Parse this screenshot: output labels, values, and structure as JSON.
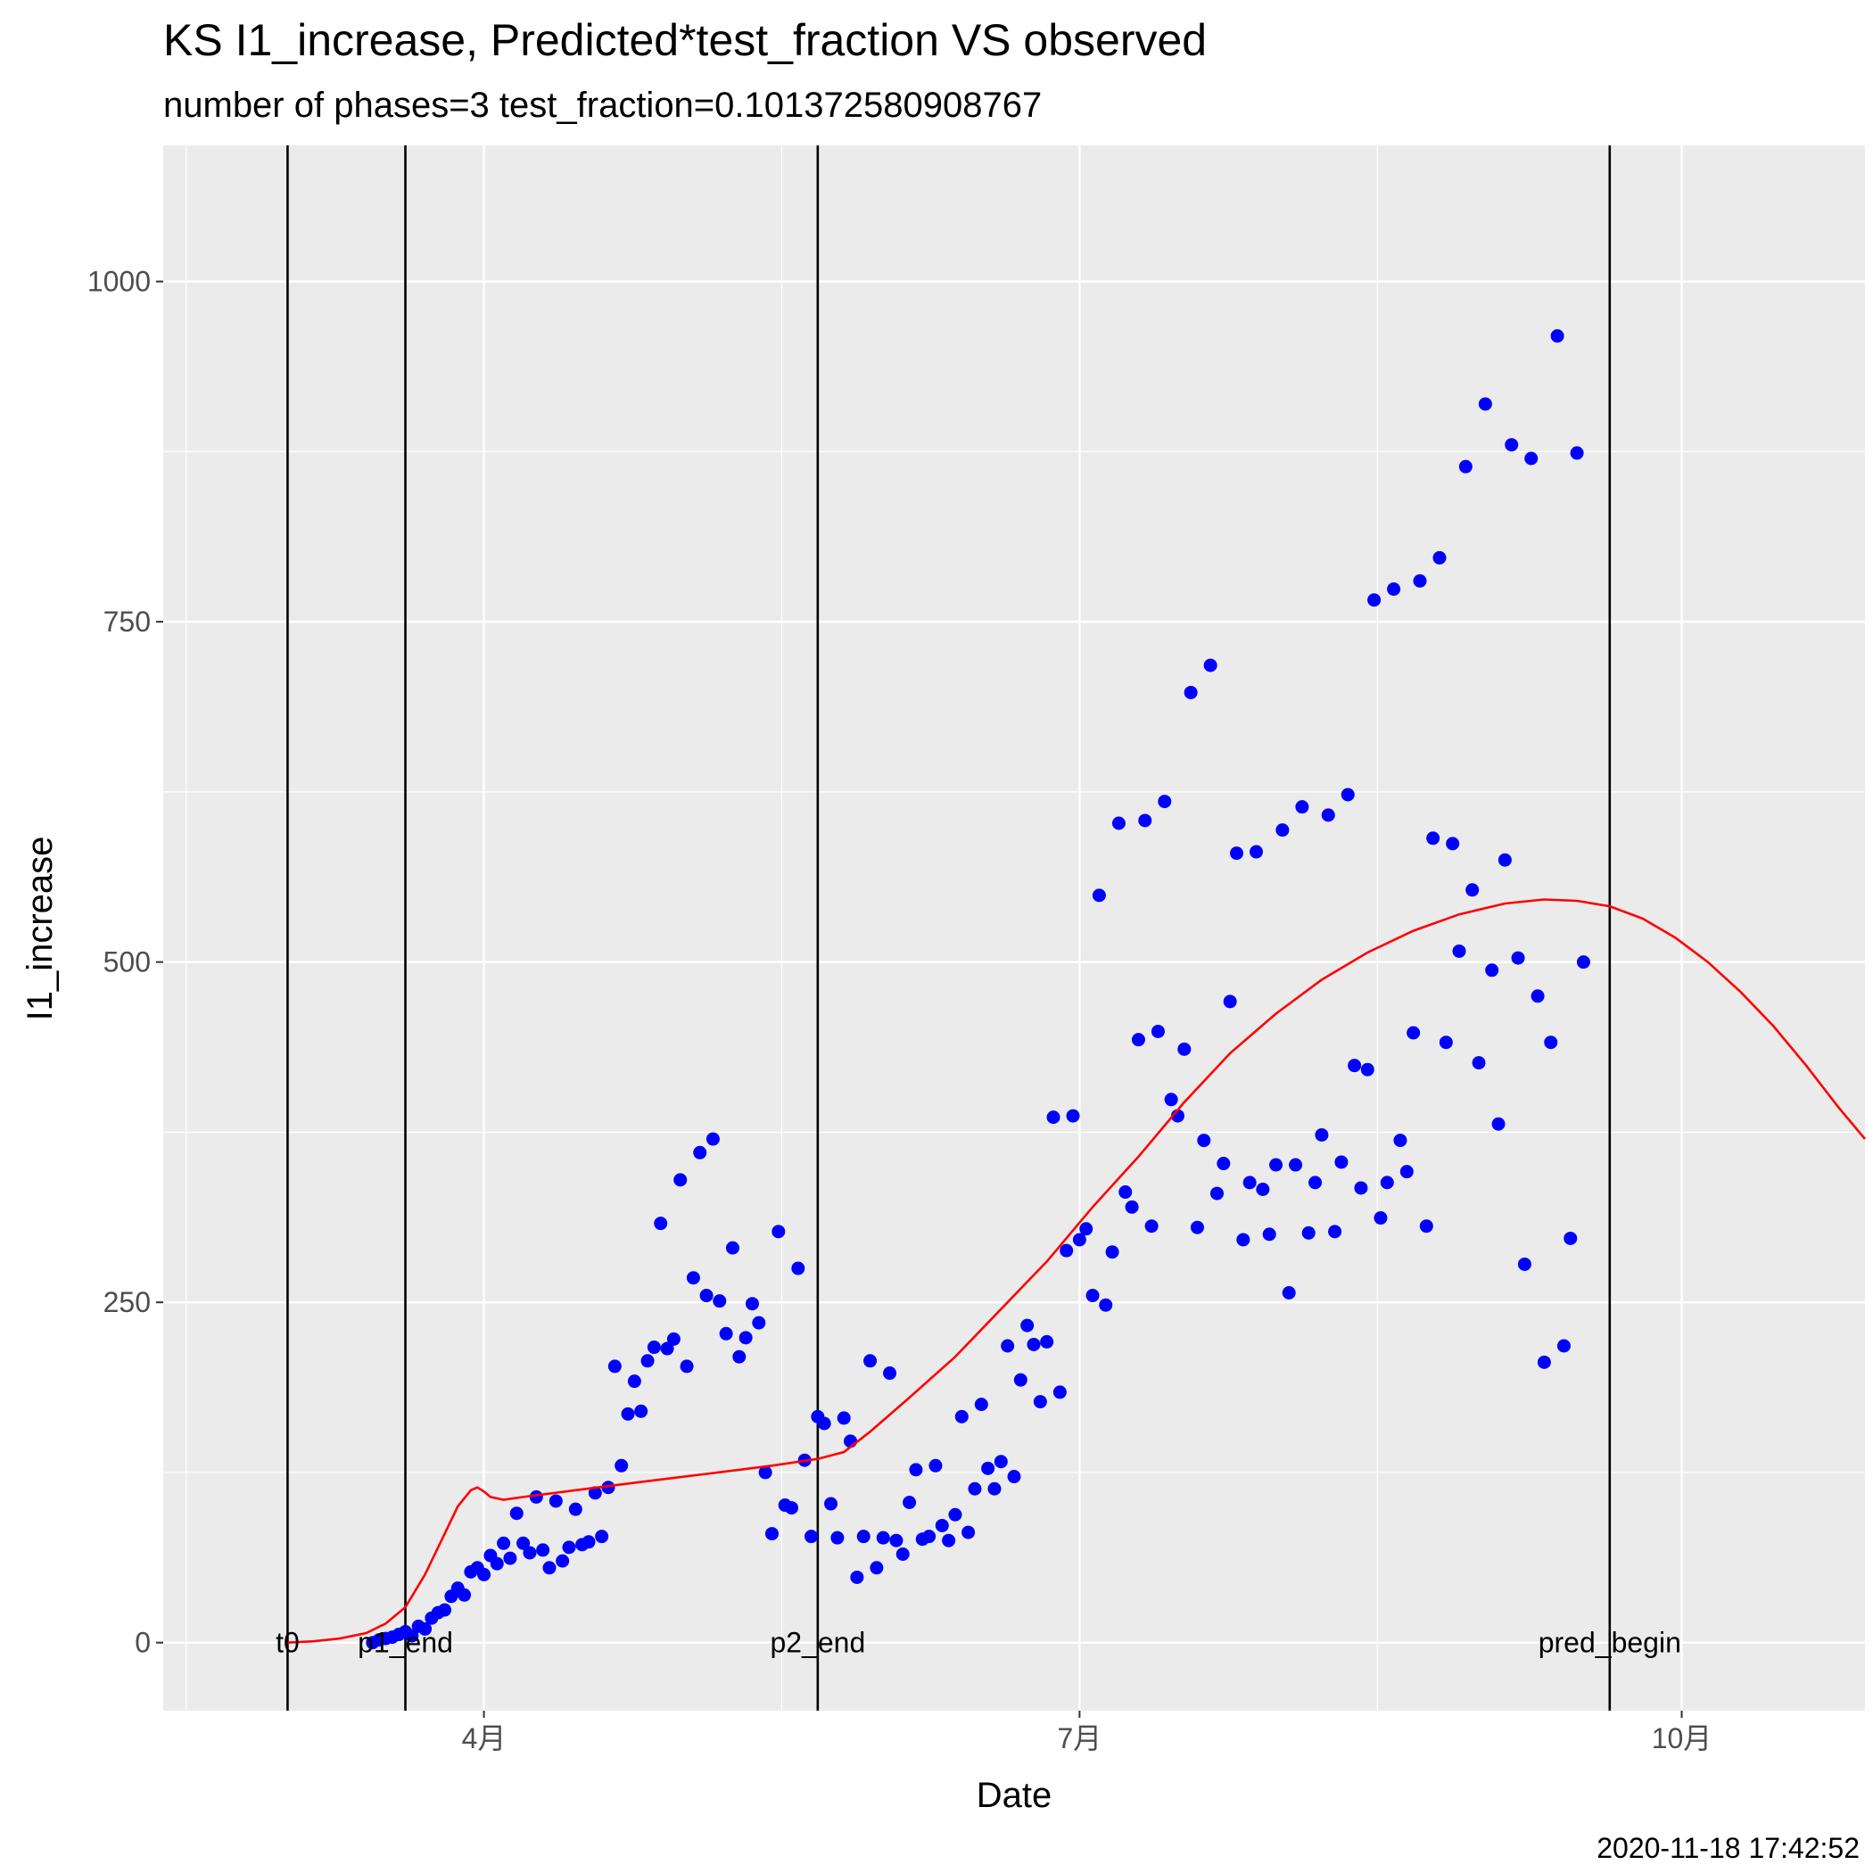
{
  "chart_data": {
    "type": "scatter",
    "title": "KS I1_increase, Predicted*test_fraction VS observed",
    "subtitle": "number of phases=3   test_fraction=0.101372580908767",
    "xlabel": "Date",
    "ylabel": "I1_increase",
    "caption": "2020-11-18 17:42:52",
    "x_ticks": [
      {
        "date": "2020-04-01",
        "label": "4月"
      },
      {
        "date": "2020-07-01",
        "label": "7月"
      },
      {
        "date": "2020-10-01",
        "label": "10月"
      }
    ],
    "xlim": [
      "2020-02-12",
      "2020-10-29"
    ],
    "y_ticks": [
      0,
      250,
      500,
      750,
      1000
    ],
    "ylim": [
      -50,
      1100
    ],
    "grid": true,
    "colors": {
      "panel": "#ebebeb",
      "grid": "#ffffff",
      "observed": "#0000ff",
      "predicted": "#ff0000",
      "vline": "#000000"
    },
    "vlines": [
      {
        "date": "2020-03-02",
        "label": "t0"
      },
      {
        "date": "2020-03-20",
        "label": "p1_end"
      },
      {
        "date": "2020-05-22",
        "label": "p2_end"
      },
      {
        "date": "2020-09-20",
        "label": "pred_begin"
      }
    ],
    "series": [
      {
        "name": "observed",
        "kind": "points",
        "points": [
          [
            "2020-03-15",
            0
          ],
          [
            "2020-03-16",
            2
          ],
          [
            "2020-03-17",
            3
          ],
          [
            "2020-03-18",
            4
          ],
          [
            "2020-03-19",
            6
          ],
          [
            "2020-03-20",
            8
          ],
          [
            "2020-03-21",
            5
          ],
          [
            "2020-03-22",
            12
          ],
          [
            "2020-03-23",
            10
          ],
          [
            "2020-03-24",
            18
          ],
          [
            "2020-03-25",
            22
          ],
          [
            "2020-03-26",
            24
          ],
          [
            "2020-03-27",
            34
          ],
          [
            "2020-03-28",
            40
          ],
          [
            "2020-03-29",
            35
          ],
          [
            "2020-03-30",
            52
          ],
          [
            "2020-03-31",
            55
          ],
          [
            "2020-04-01",
            50
          ],
          [
            "2020-04-02",
            64
          ],
          [
            "2020-04-03",
            58
          ],
          [
            "2020-04-04",
            73
          ],
          [
            "2020-04-05",
            62
          ],
          [
            "2020-04-06",
            95
          ],
          [
            "2020-04-07",
            73
          ],
          [
            "2020-04-08",
            66
          ],
          [
            "2020-04-09",
            107
          ],
          [
            "2020-04-10",
            68
          ],
          [
            "2020-04-11",
            55
          ],
          [
            "2020-04-12",
            104
          ],
          [
            "2020-04-13",
            60
          ],
          [
            "2020-04-14",
            70
          ],
          [
            "2020-04-15",
            98
          ],
          [
            "2020-04-16",
            72
          ],
          [
            "2020-04-17",
            74
          ],
          [
            "2020-04-18",
            110
          ],
          [
            "2020-04-19",
            78
          ],
          [
            "2020-04-20",
            114
          ],
          [
            "2020-04-21",
            203
          ],
          [
            "2020-04-22",
            130
          ],
          [
            "2020-04-23",
            168
          ],
          [
            "2020-04-24",
            192
          ],
          [
            "2020-04-25",
            170
          ],
          [
            "2020-04-26",
            207
          ],
          [
            "2020-04-27",
            217
          ],
          [
            "2020-04-28",
            308
          ],
          [
            "2020-04-29",
            216
          ],
          [
            "2020-04-30",
            223
          ],
          [
            "2020-05-01",
            340
          ],
          [
            "2020-05-02",
            203
          ],
          [
            "2020-05-03",
            268
          ],
          [
            "2020-05-04",
            360
          ],
          [
            "2020-05-05",
            255
          ],
          [
            "2020-05-06",
            370
          ],
          [
            "2020-05-07",
            251
          ],
          [
            "2020-05-08",
            227
          ],
          [
            "2020-05-09",
            290
          ],
          [
            "2020-05-10",
            210
          ],
          [
            "2020-05-11",
            224
          ],
          [
            "2020-05-12",
            249
          ],
          [
            "2020-05-13",
            235
          ],
          [
            "2020-05-14",
            125
          ],
          [
            "2020-05-15",
            80
          ],
          [
            "2020-05-16",
            302
          ],
          [
            "2020-05-17",
            101
          ],
          [
            "2020-05-18",
            99
          ],
          [
            "2020-05-19",
            275
          ],
          [
            "2020-05-20",
            134
          ],
          [
            "2020-05-21",
            78
          ],
          [
            "2020-05-22",
            166
          ],
          [
            "2020-05-23",
            161
          ],
          [
            "2020-05-24",
            102
          ],
          [
            "2020-05-25",
            77
          ],
          [
            "2020-05-26",
            165
          ],
          [
            "2020-05-27",
            148
          ],
          [
            "2020-05-28",
            48
          ],
          [
            "2020-05-29",
            78
          ],
          [
            "2020-05-30",
            207
          ],
          [
            "2020-05-31",
            55
          ],
          [
            "2020-06-01",
            77
          ],
          [
            "2020-06-02",
            198
          ],
          [
            "2020-06-03",
            75
          ],
          [
            "2020-06-04",
            65
          ],
          [
            "2020-06-05",
            103
          ],
          [
            "2020-06-06",
            127
          ],
          [
            "2020-06-07",
            76
          ],
          [
            "2020-06-08",
            78
          ],
          [
            "2020-06-09",
            130
          ],
          [
            "2020-06-10",
            86
          ],
          [
            "2020-06-11",
            75
          ],
          [
            "2020-06-12",
            94
          ],
          [
            "2020-06-13",
            166
          ],
          [
            "2020-06-14",
            81
          ],
          [
            "2020-06-15",
            113
          ],
          [
            "2020-06-16",
            175
          ],
          [
            "2020-06-17",
            128
          ],
          [
            "2020-06-18",
            113
          ],
          [
            "2020-06-19",
            133
          ],
          [
            "2020-06-20",
            218
          ],
          [
            "2020-06-21",
            122
          ],
          [
            "2020-06-22",
            193
          ],
          [
            "2020-06-23",
            233
          ],
          [
            "2020-06-24",
            219
          ],
          [
            "2020-06-25",
            177
          ],
          [
            "2020-06-26",
            221
          ],
          [
            "2020-06-27",
            386
          ],
          [
            "2020-06-28",
            184
          ],
          [
            "2020-06-29",
            288
          ],
          [
            "2020-06-30",
            387
          ],
          [
            "2020-07-01",
            296
          ],
          [
            "2020-07-02",
            304
          ],
          [
            "2020-07-03",
            255
          ],
          [
            "2020-07-04",
            549
          ],
          [
            "2020-07-05",
            248
          ],
          [
            "2020-07-06",
            287
          ],
          [
            "2020-07-07",
            602
          ],
          [
            "2020-07-08",
            331
          ],
          [
            "2020-07-09",
            320
          ],
          [
            "2020-07-10",
            443
          ],
          [
            "2020-07-11",
            604
          ],
          [
            "2020-07-12",
            306
          ],
          [
            "2020-07-13",
            449
          ],
          [
            "2020-07-14",
            618
          ],
          [
            "2020-07-15",
            399
          ],
          [
            "2020-07-16",
            387
          ],
          [
            "2020-07-17",
            436
          ],
          [
            "2020-07-18",
            698
          ],
          [
            "2020-07-19",
            305
          ],
          [
            "2020-07-20",
            369
          ],
          [
            "2020-07-21",
            718
          ],
          [
            "2020-07-22",
            330
          ],
          [
            "2020-07-23",
            352
          ],
          [
            "2020-07-24",
            471
          ],
          [
            "2020-07-25",
            580
          ],
          [
            "2020-07-26",
            296
          ],
          [
            "2020-07-27",
            338
          ],
          [
            "2020-07-28",
            581
          ],
          [
            "2020-07-29",
            333
          ],
          [
            "2020-07-30",
            300
          ],
          [
            "2020-07-31",
            351
          ],
          [
            "2020-08-01",
            597
          ],
          [
            "2020-08-02",
            257
          ],
          [
            "2020-08-03",
            351
          ],
          [
            "2020-08-04",
            614
          ],
          [
            "2020-08-05",
            301
          ],
          [
            "2020-08-06",
            338
          ],
          [
            "2020-08-07",
            373
          ],
          [
            "2020-08-08",
            608
          ],
          [
            "2020-08-09",
            302
          ],
          [
            "2020-08-10",
            353
          ],
          [
            "2020-08-11",
            623
          ],
          [
            "2020-08-12",
            424
          ],
          [
            "2020-08-13",
            334
          ],
          [
            "2020-08-14",
            421
          ],
          [
            "2020-08-15",
            766
          ],
          [
            "2020-08-16",
            312
          ],
          [
            "2020-08-17",
            338
          ],
          [
            "2020-08-18",
            774
          ],
          [
            "2020-08-19",
            369
          ],
          [
            "2020-08-20",
            346
          ],
          [
            "2020-08-21",
            448
          ],
          [
            "2020-08-22",
            780
          ],
          [
            "2020-08-23",
            306
          ],
          [
            "2020-08-24",
            591
          ],
          [
            "2020-08-25",
            797
          ],
          [
            "2020-08-26",
            441
          ],
          [
            "2020-08-27",
            587
          ],
          [
            "2020-08-28",
            508
          ],
          [
            "2020-08-29",
            864
          ],
          [
            "2020-08-30",
            553
          ],
          [
            "2020-08-31",
            426
          ],
          [
            "2020-09-01",
            910
          ],
          [
            "2020-09-02",
            494
          ],
          [
            "2020-09-03",
            381
          ],
          [
            "2020-09-04",
            575
          ],
          [
            "2020-09-05",
            880
          ],
          [
            "2020-09-06",
            503
          ],
          [
            "2020-09-07",
            278
          ],
          [
            "2020-09-08",
            870
          ],
          [
            "2020-09-09",
            475
          ],
          [
            "2020-09-10",
            206
          ],
          [
            "2020-09-11",
            441
          ],
          [
            "2020-09-12",
            960
          ],
          [
            "2020-09-13",
            218
          ],
          [
            "2020-09-14",
            297
          ],
          [
            "2020-09-15",
            874
          ],
          [
            "2020-09-16",
            500
          ]
        ]
      },
      {
        "name": "predicted",
        "kind": "line",
        "points": [
          [
            "2020-03-02",
            0
          ],
          [
            "2020-03-06",
            1
          ],
          [
            "2020-03-10",
            3
          ],
          [
            "2020-03-14",
            7
          ],
          [
            "2020-03-17",
            14
          ],
          [
            "2020-03-20",
            26
          ],
          [
            "2020-03-23",
            50
          ],
          [
            "2020-03-26",
            80
          ],
          [
            "2020-03-28",
            100
          ],
          [
            "2020-03-30",
            112
          ],
          [
            "2020-03-31",
            114
          ],
          [
            "2020-04-01",
            111
          ],
          [
            "2020-04-02",
            107
          ],
          [
            "2020-04-04",
            105
          ],
          [
            "2020-04-07",
            107
          ],
          [
            "2020-04-15",
            112
          ],
          [
            "2020-04-25",
            118
          ],
          [
            "2020-05-05",
            124
          ],
          [
            "2020-05-15",
            130
          ],
          [
            "2020-05-22",
            135
          ],
          [
            "2020-05-26",
            140
          ],
          [
            "2020-05-30",
            155
          ],
          [
            "2020-06-05",
            180
          ],
          [
            "2020-06-12",
            210
          ],
          [
            "2020-06-19",
            245
          ],
          [
            "2020-06-26",
            280
          ],
          [
            "2020-07-03",
            320
          ],
          [
            "2020-07-10",
            357
          ],
          [
            "2020-07-17",
            397
          ],
          [
            "2020-07-24",
            433
          ],
          [
            "2020-07-31",
            462
          ],
          [
            "2020-08-07",
            487
          ],
          [
            "2020-08-14",
            507
          ],
          [
            "2020-08-21",
            523
          ],
          [
            "2020-08-28",
            535
          ],
          [
            "2020-09-04",
            543
          ],
          [
            "2020-09-10",
            546
          ],
          [
            "2020-09-15",
            545
          ],
          [
            "2020-09-20",
            541
          ],
          [
            "2020-09-25",
            532
          ],
          [
            "2020-09-30",
            518
          ],
          [
            "2020-10-05",
            500
          ],
          [
            "2020-10-10",
            478
          ],
          [
            "2020-10-15",
            453
          ],
          [
            "2020-10-20",
            424
          ],
          [
            "2020-10-25",
            393
          ],
          [
            "2020-10-29",
            370
          ]
        ]
      }
    ]
  }
}
